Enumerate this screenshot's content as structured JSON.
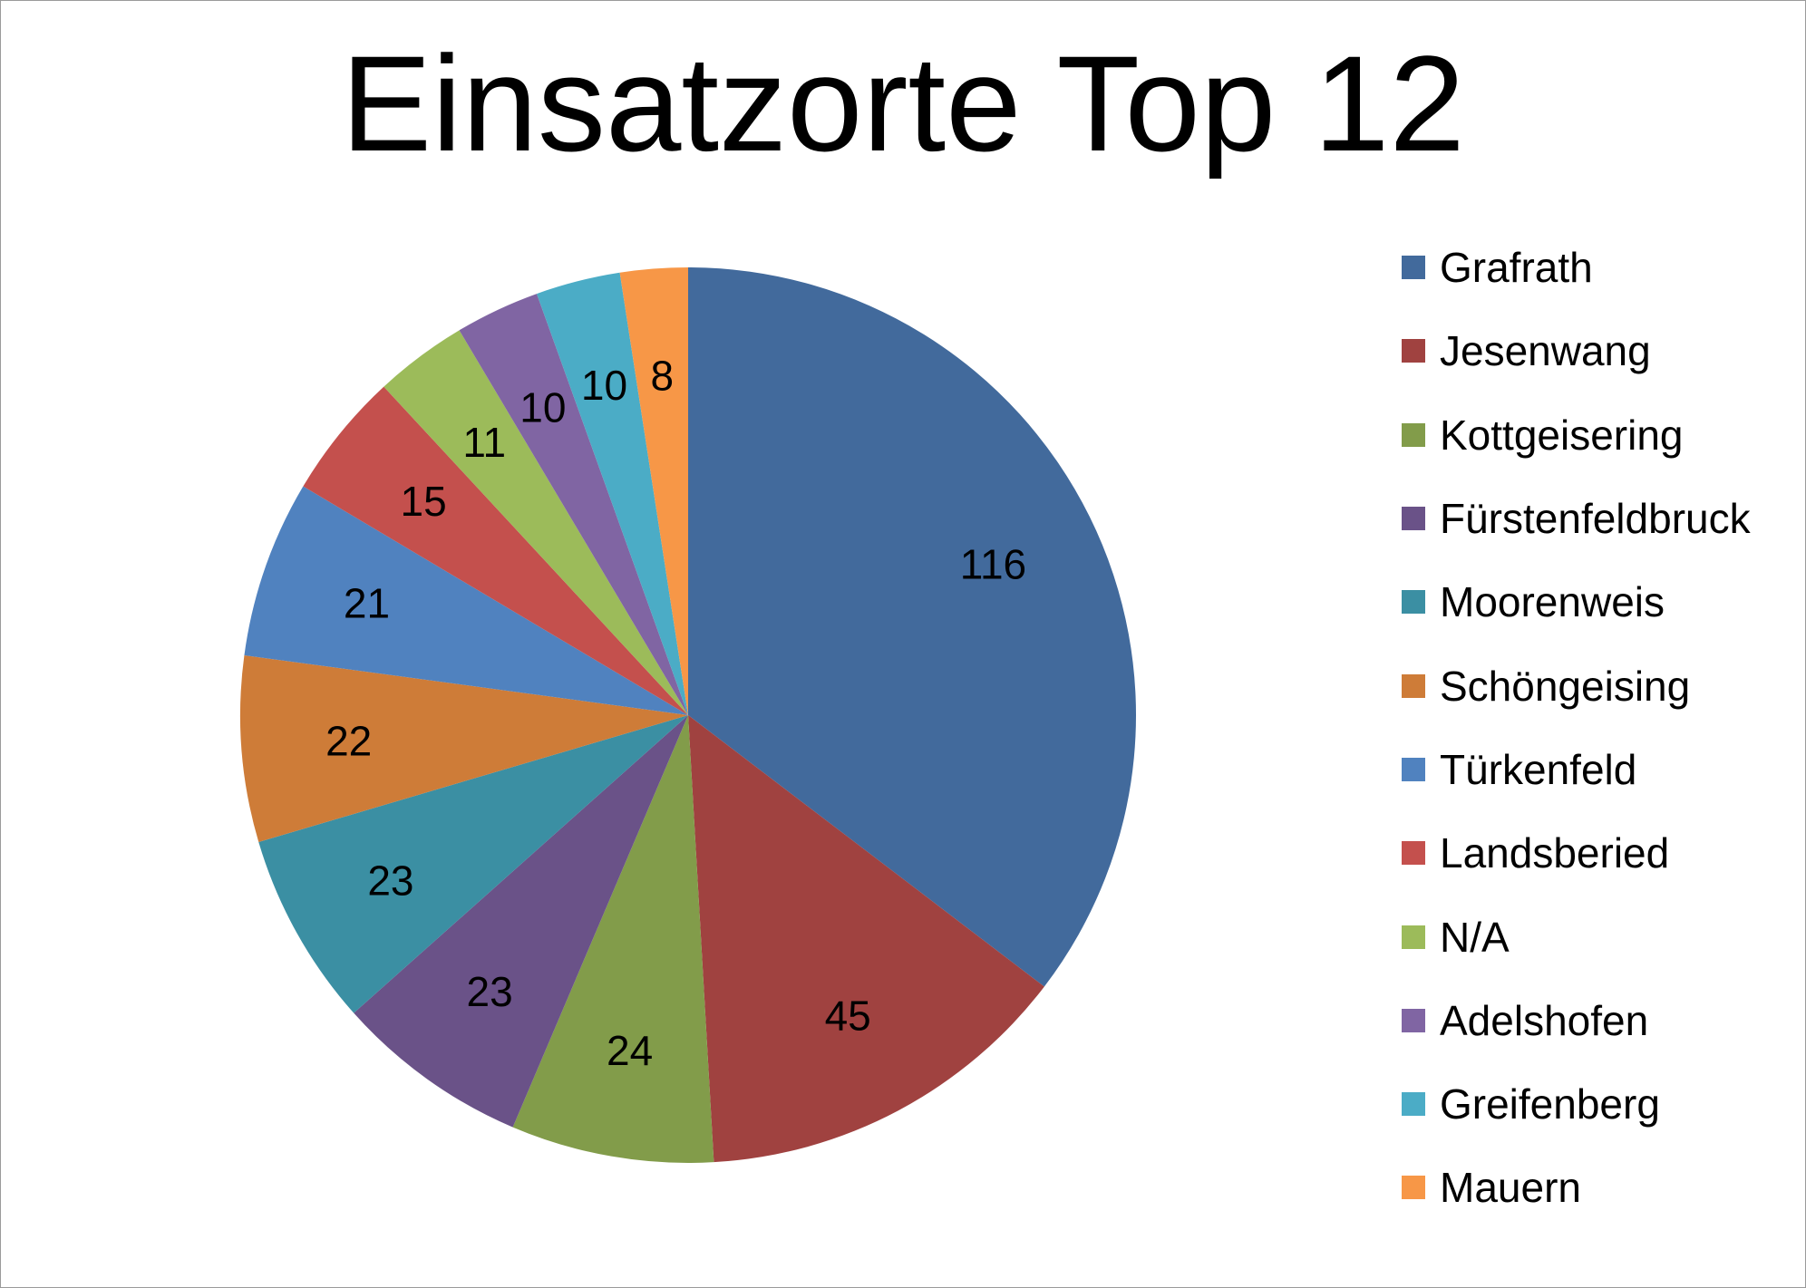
{
  "chart_data": {
    "type": "pie",
    "title": "Einsatzorte Top 12",
    "legend_position": "right",
    "slices": [
      {
        "label": "Grafrath",
        "value": 116,
        "color": "#426A9C"
      },
      {
        "label": "Jesenwang",
        "value": 45,
        "color": "#A04240"
      },
      {
        "label": "Kottgeisering",
        "value": 24,
        "color": "#829C4A"
      },
      {
        "label": "Fürstenfeldbruck",
        "value": 23,
        "color": "#6A5288"
      },
      {
        "label": "Moorenweis",
        "value": 23,
        "color": "#3B8FA3"
      },
      {
        "label": "Schöngeising",
        "value": 22,
        "color": "#CE7C38"
      },
      {
        "label": "Türkenfeld",
        "value": 21,
        "color": "#5082BF"
      },
      {
        "label": "Landsberied",
        "value": 15,
        "color": "#C4504D"
      },
      {
        "label": "N/A",
        "value": 11,
        "color": "#9CBB5A"
      },
      {
        "label": "Adelshofen",
        "value": 10,
        "color": "#8065A3"
      },
      {
        "label": "Greifenberg",
        "value": 10,
        "color": "#4BACC6"
      },
      {
        "label": "Mauern",
        "value": 8,
        "color": "#F79747"
      }
    ]
  }
}
